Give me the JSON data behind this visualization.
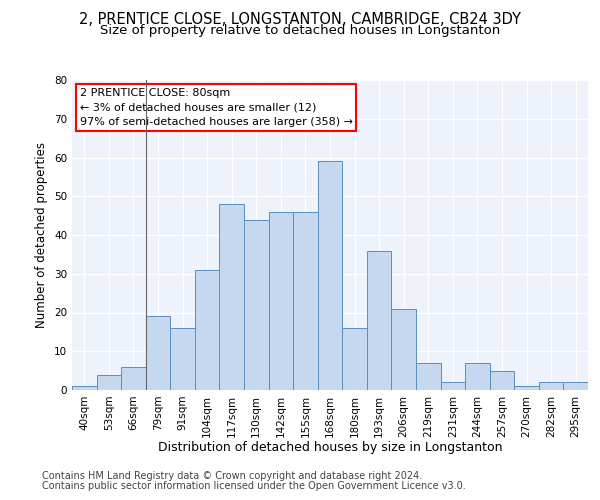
{
  "title": "2, PRENTICE CLOSE, LONGSTANTON, CAMBRIDGE, CB24 3DY",
  "subtitle": "Size of property relative to detached houses in Longstanton",
  "xlabel": "Distribution of detached houses by size in Longstanton",
  "ylabel": "Number of detached properties",
  "categories": [
    "40sqm",
    "53sqm",
    "66sqm",
    "79sqm",
    "91sqm",
    "104sqm",
    "117sqm",
    "130sqm",
    "142sqm",
    "155sqm",
    "168sqm",
    "180sqm",
    "193sqm",
    "206sqm",
    "219sqm",
    "231sqm",
    "244sqm",
    "257sqm",
    "270sqm",
    "282sqm",
    "295sqm"
  ],
  "values": [
    1,
    4,
    6,
    19,
    16,
    31,
    48,
    44,
    46,
    46,
    59,
    16,
    36,
    21,
    7,
    2,
    7,
    5,
    1,
    2,
    2
  ],
  "bar_color": "#c5d8f0",
  "bar_edge_color": "#5a8fc0",
  "annotation_text_line1": "2 PRENTICE CLOSE: 80sqm",
  "annotation_text_line2": "← 3% of detached houses are smaller (12)",
  "annotation_text_line3": "97% of semi-detached houses are larger (358) →",
  "ylim": [
    0,
    80
  ],
  "yticks": [
    0,
    10,
    20,
    30,
    40,
    50,
    60,
    70,
    80
  ],
  "background_color": "#edf2fb",
  "grid_color": "#ffffff",
  "footer1": "Contains HM Land Registry data © Crown copyright and database right 2024.",
  "footer2": "Contains public sector information licensed under the Open Government Licence v3.0.",
  "title_fontsize": 10.5,
  "subtitle_fontsize": 9.5,
  "annotation_fontsize": 8,
  "tick_fontsize": 7.5,
  "xlabel_fontsize": 9,
  "ylabel_fontsize": 8.5,
  "footer_fontsize": 7
}
